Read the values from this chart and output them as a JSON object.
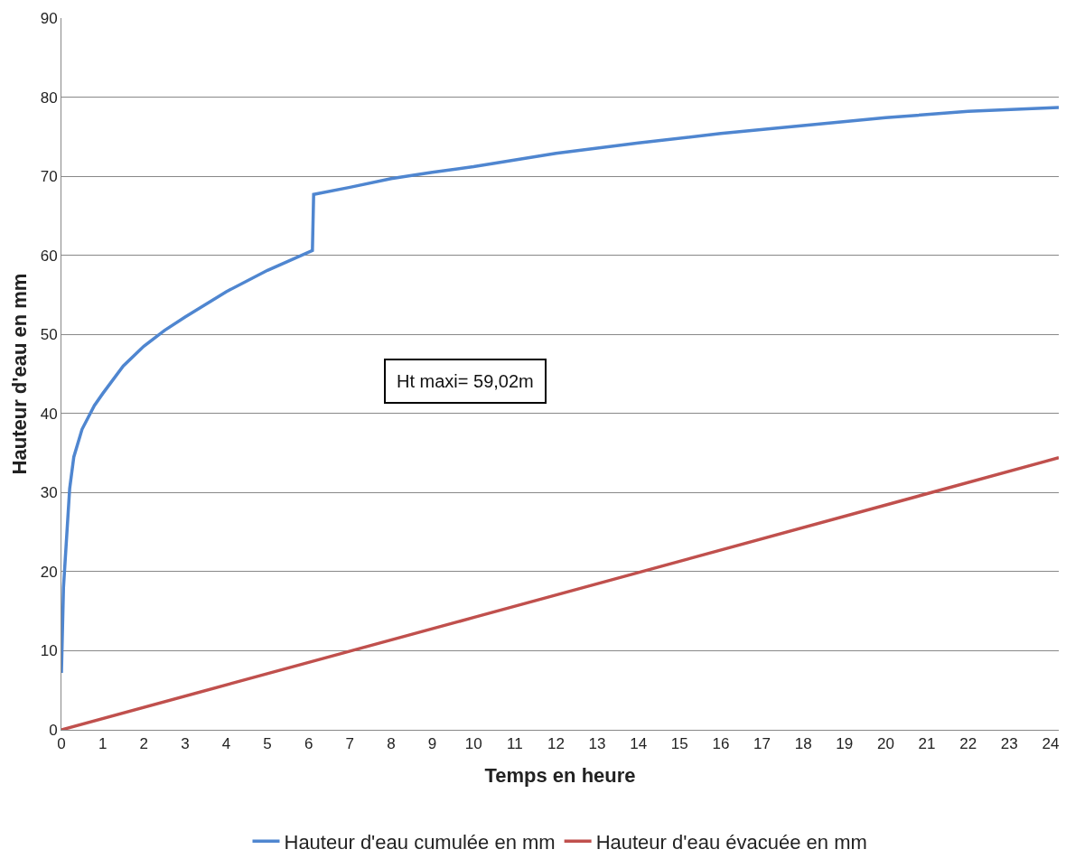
{
  "chart_data": {
    "type": "line",
    "xlabel": "Temps en heure",
    "ylabel": "Hauteur d'eau en mm",
    "annotations": [
      "Ht maxi= 59,02m"
    ],
    "series": [
      {
        "name": "Hauteur d'eau cumulée en mm",
        "color": "#4f86d0",
        "x": [
          0,
          0.05,
          0.2,
          0.3,
          0.5,
          0.8,
          1,
          1.5,
          2,
          2.5,
          3,
          4,
          5,
          6.09,
          6.12,
          7,
          8,
          9,
          10,
          12,
          14,
          16,
          18,
          20,
          22,
          24.2
        ],
        "values": [
          7.2,
          18,
          30.5,
          34.5,
          38,
          41,
          42.5,
          46,
          48.5,
          50.5,
          52.2,
          55.4,
          58.1,
          60.6,
          67.7,
          68.6,
          69.7,
          70.5,
          71.2,
          72.9,
          74.2,
          75.4,
          76.4,
          77.4,
          78.2,
          78.7
        ]
      },
      {
        "name": "Hauteur d'eau évacuée en mm",
        "color": "#c0504d",
        "x": [
          0,
          10,
          24.2
        ],
        "values": [
          0,
          14.2,
          34.4
        ]
      }
    ],
    "xlim": [
      0,
      24.2
    ],
    "xticks": [
      0,
      1,
      2,
      3,
      4,
      5,
      6,
      7,
      8,
      9,
      10,
      11,
      12,
      13,
      14,
      15,
      16,
      17,
      18,
      19,
      20,
      21,
      22,
      23,
      24
    ],
    "ylim": [
      0,
      90
    ],
    "yticks": [
      0,
      10,
      20,
      30,
      40,
      50,
      60,
      70,
      80,
      90
    ],
    "grid": "y",
    "legend": "bottom",
    "marker": "none",
    "line_style": "solid"
  }
}
